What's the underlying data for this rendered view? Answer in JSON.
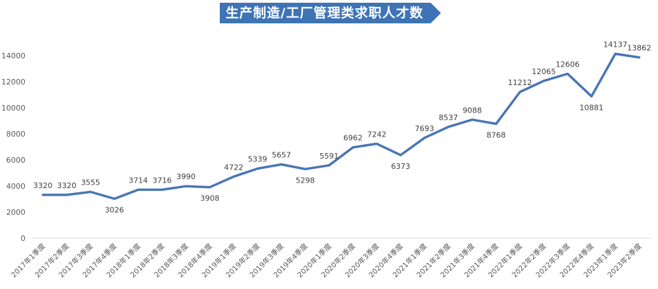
{
  "chart_data": {
    "type": "line",
    "title": "生产制造/工厂管理类求职人才数",
    "categories": [
      "2017年1季度",
      "2017年2季度",
      "2017年3季度",
      "2017年4季度",
      "2018年1季度",
      "2018年2季度",
      "2018年3季度",
      "2018年4季度",
      "2019年1季度",
      "2019年2季度",
      "2019年3季度",
      "2019年4季度",
      "2020年1季度",
      "2020年2季度",
      "2020年3季度",
      "2020年4季度",
      "2021年1季度",
      "2021年2季度",
      "2021年3季度",
      "2021年4季度",
      "2022年1季度",
      "2022年2季度",
      "2022年3季度",
      "2022年4季度",
      "2023年1季度",
      "2023年2季度"
    ],
    "values": [
      3320,
      3320,
      3555,
      3026,
      3714,
      3716,
      3990,
      3908,
      4722,
      5339,
      5657,
      5298,
      5591,
      6962,
      7242,
      6373,
      7693,
      8537,
      9088,
      8768,
      11212,
      12065,
      12606,
      10881,
      14137,
      13862
    ],
    "y_ticks": [
      "0",
      "2000",
      "4000",
      "6000",
      "8000",
      "10000",
      "12000",
      "14000"
    ],
    "ylim": [
      0,
      14000
    ],
    "grid": false,
    "legend": "none",
    "line_color": "#4a76b3",
    "title_bg_color": "#3e74b6"
  }
}
